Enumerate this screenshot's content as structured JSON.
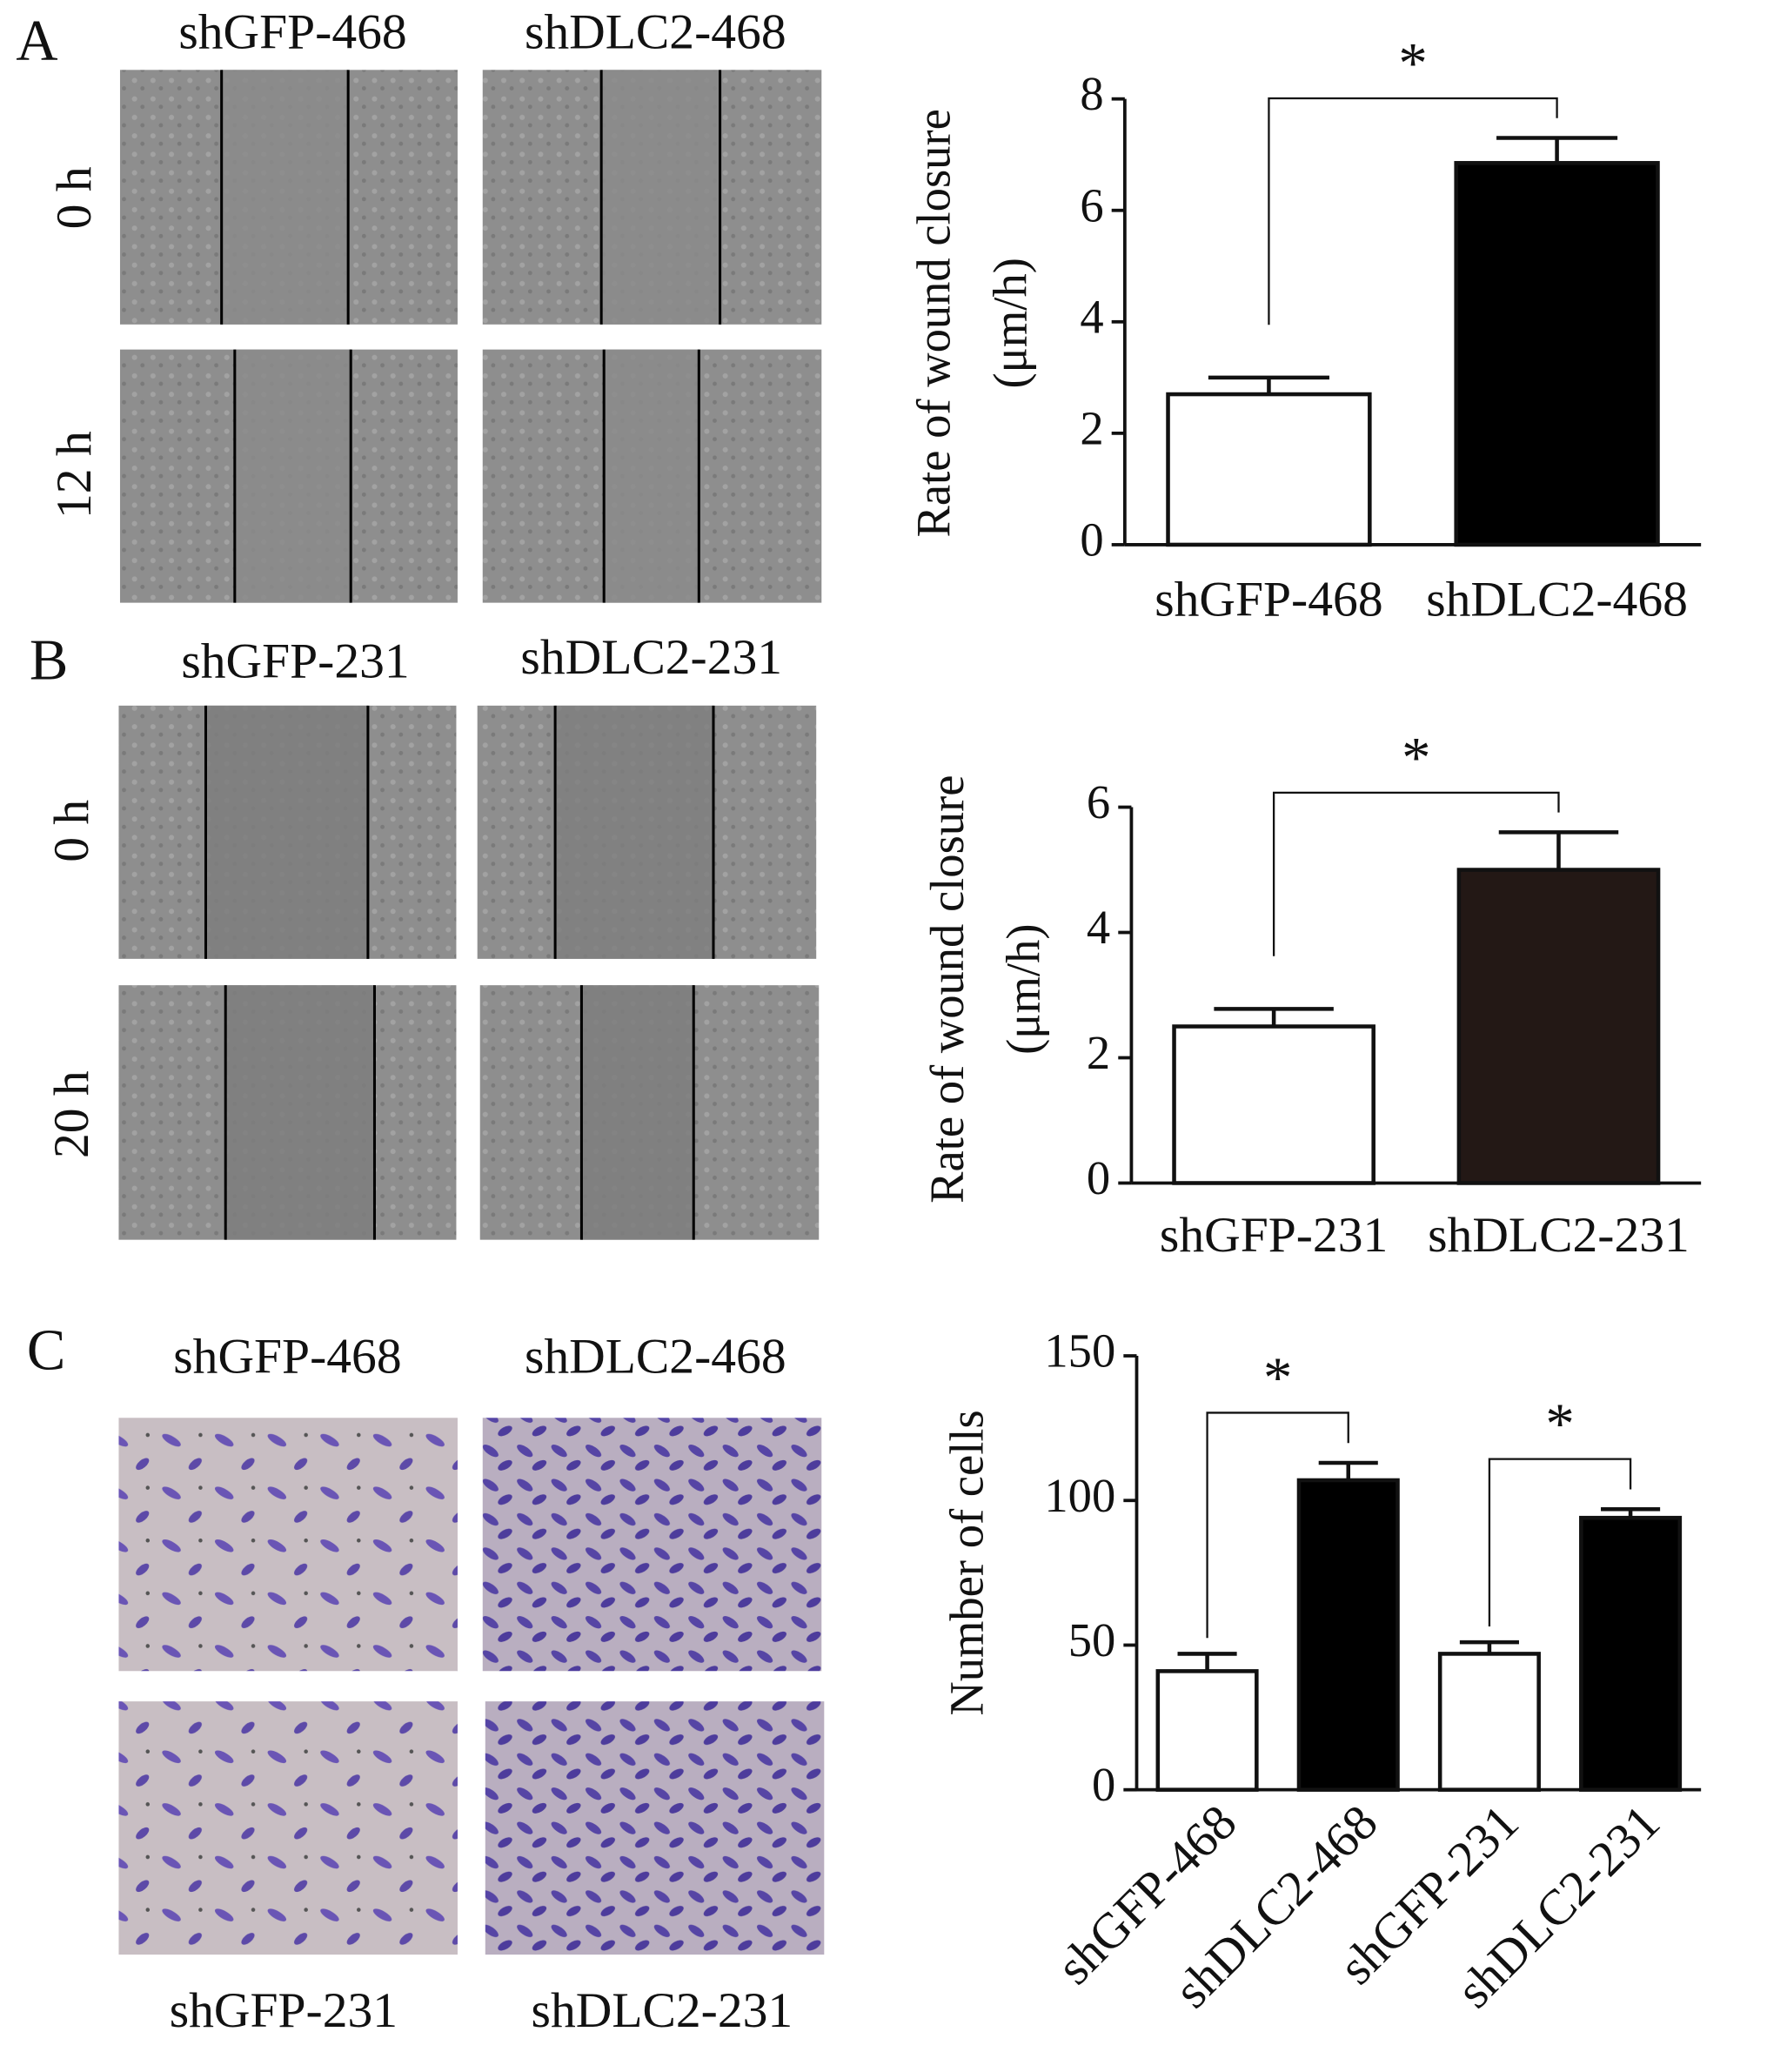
{
  "panels": [
    {
      "label": "A",
      "columns": [
        "shGFP-468",
        "shDLC2-468"
      ],
      "rows": [
        "0 h",
        "12 h"
      ]
    },
    {
      "label": "B",
      "columns": [
        "shGFP-231",
        "shDLC2-231"
      ],
      "rows": [
        "0 h",
        "20 h"
      ]
    },
    {
      "label": "C",
      "columns_top": [
        "shGFP-468",
        "shDLC2-468"
      ],
      "columns_bottom": [
        "shGFP-231",
        "shDLC2-231"
      ]
    }
  ],
  "chart_data": [
    {
      "type": "bar",
      "ylabel": [
        "Rate of wound closure",
        "(μm/h)"
      ],
      "categories": [
        "shGFP-468",
        "shDLC2-468"
      ],
      "values": [
        2.7,
        6.85
      ],
      "errors": [
        0.3,
        0.45
      ],
      "colors": [
        "#ffffff",
        "#000000"
      ],
      "ylim": [
        0,
        8
      ],
      "yticks": [
        0,
        2,
        4,
        6,
        8
      ],
      "annotations": [
        "*"
      ]
    },
    {
      "type": "bar",
      "ylabel": [
        "Rate of wound closure",
        "(μm/h)"
      ],
      "categories": [
        "shGFP-231",
        "shDLC2-231"
      ],
      "values": [
        2.5,
        5.0
      ],
      "errors": [
        0.28,
        0.6
      ],
      "colors": [
        "#ffffff",
        "#231815"
      ],
      "ylim": [
        0,
        6
      ],
      "yticks": [
        0,
        2,
        4,
        6
      ],
      "annotations": [
        "*"
      ]
    },
    {
      "type": "bar",
      "ylabel": [
        "Number of cells"
      ],
      "categories": [
        "shGFP-468",
        "shDLC2-468",
        "shGFP-231",
        "shDLC2-231"
      ],
      "values": [
        41,
        107,
        47,
        94
      ],
      "errors": [
        6,
        6,
        4,
        3
      ],
      "colors": [
        "#ffffff",
        "#000000",
        "#ffffff",
        "#000000"
      ],
      "ylim": [
        0,
        150
      ],
      "yticks": [
        0,
        50,
        100,
        150
      ],
      "annotations": [
        "*",
        "*"
      ]
    }
  ]
}
